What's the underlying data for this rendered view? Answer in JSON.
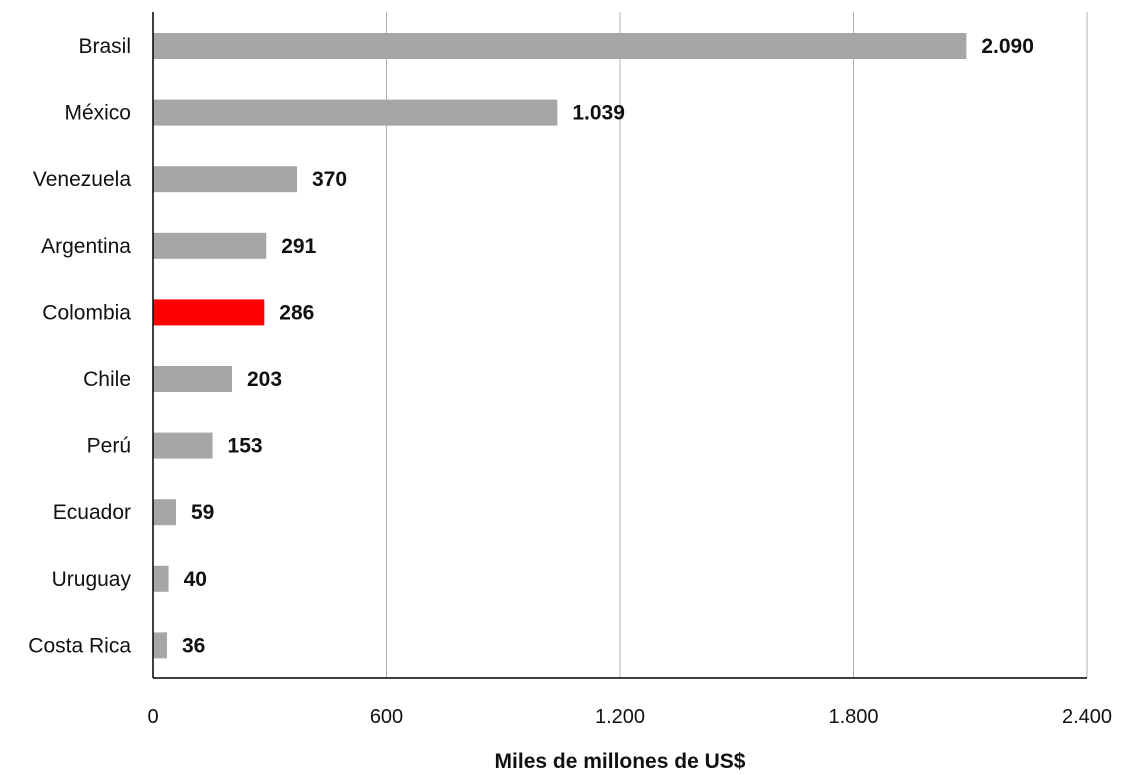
{
  "chart_data": {
    "type": "bar",
    "orientation": "horizontal",
    "title": "",
    "xlabel": "Miles de millones de US$",
    "ylabel": "",
    "categories": [
      "Brasil",
      "México",
      "Venezuela",
      "Argentina",
      "Colombia",
      "Chile",
      "Perú",
      "Ecuador",
      "Uruguay",
      "Costa Rica"
    ],
    "values": [
      2090,
      1039,
      370,
      291,
      286,
      203,
      153,
      59,
      40,
      36
    ],
    "value_labels": [
      "2.090",
      "1.039",
      "370",
      "291",
      "286",
      "203",
      "153",
      "59",
      "40",
      "36"
    ],
    "xlim": [
      0,
      2400
    ],
    "x_ticks": [
      0,
      600,
      1200,
      1800,
      2400
    ],
    "x_tick_labels": [
      "0",
      "600",
      "1.200",
      "1.800",
      "2.400"
    ],
    "grid": "vertical",
    "legend": "none",
    "highlight_category": "Colombia",
    "colors": {
      "bar": "#a6a6a6",
      "highlight": "#ff0000",
      "grid": "#b3b3b3",
      "axis": "#000000"
    }
  }
}
